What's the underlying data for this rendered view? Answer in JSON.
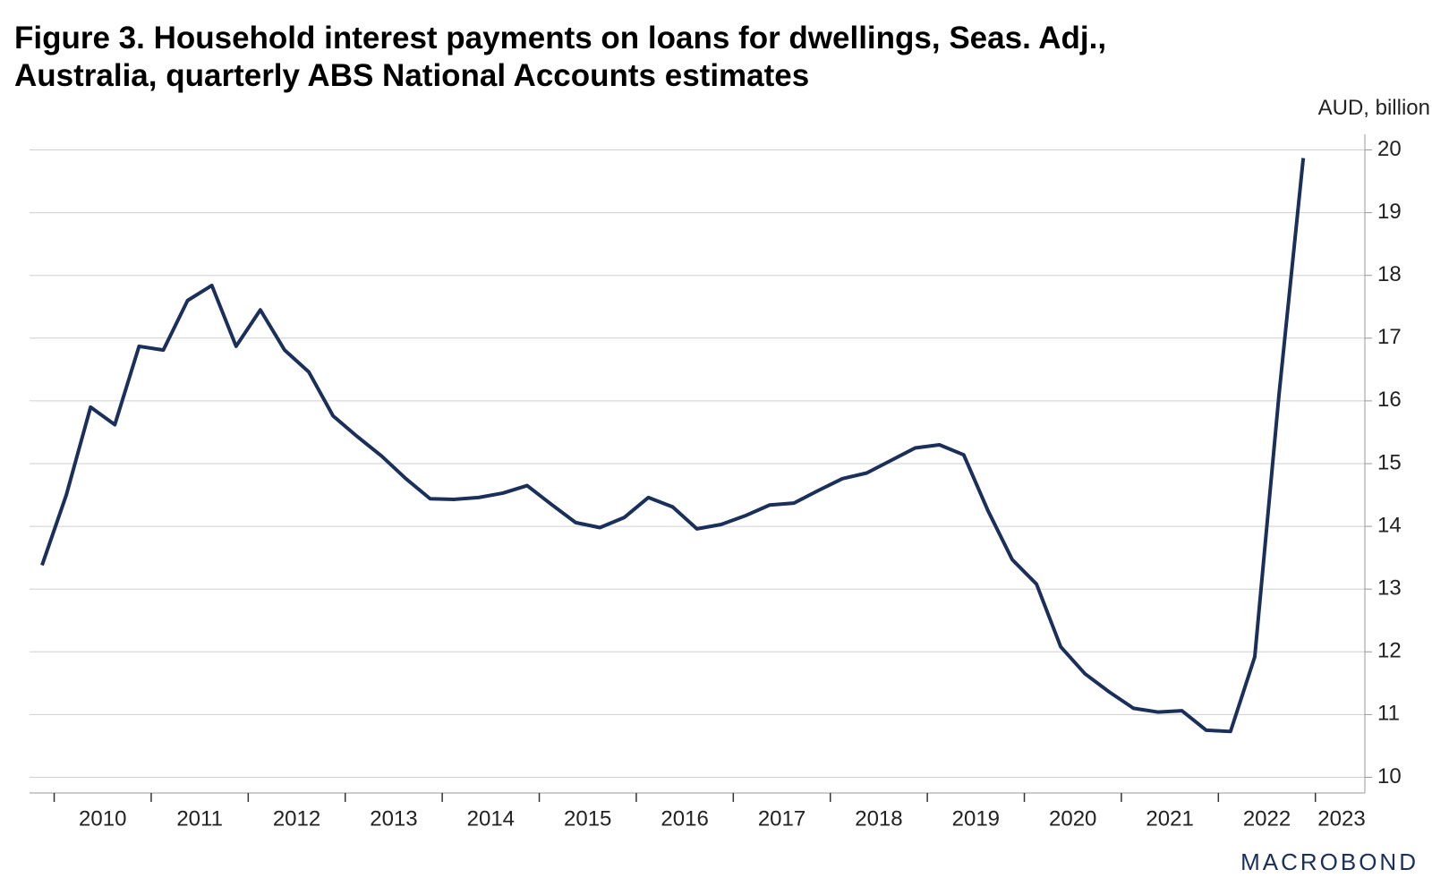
{
  "chart_data": {
    "type": "line",
    "title": "Figure 3. Household interest payments on loans for dwellings, Seas. Adj.,",
    "subtitle": "Australia, quarterly ABS National Accounts estimates",
    "y_axis_label": "AUD, billion",
    "source": "MACROBOND",
    "x": [
      2009.875,
      2010.125,
      2010.375,
      2010.625,
      2010.875,
      2011.125,
      2011.375,
      2011.625,
      2011.875,
      2012.125,
      2012.375,
      2012.625,
      2012.875,
      2013.125,
      2013.375,
      2013.625,
      2013.875,
      2014.125,
      2014.375,
      2014.625,
      2014.875,
      2015.125,
      2015.375,
      2015.625,
      2015.875,
      2016.125,
      2016.375,
      2016.625,
      2016.875,
      2017.125,
      2017.375,
      2017.625,
      2017.875,
      2018.125,
      2018.375,
      2018.625,
      2018.875,
      2019.125,
      2019.375,
      2019.625,
      2019.875,
      2020.125,
      2020.375,
      2020.625,
      2020.875,
      2021.125,
      2021.375,
      2021.625,
      2021.875,
      2022.125,
      2022.375,
      2022.625,
      2022.875
    ],
    "series": [
      {
        "name": "Household interest payments on loans for dwellings",
        "color": "#1b2f5b",
        "values": [
          13.38,
          14.5,
          15.9,
          15.62,
          16.87,
          16.81,
          17.6,
          17.84,
          16.87,
          17.45,
          16.81,
          16.46,
          15.76,
          15.43,
          15.12,
          14.76,
          14.44,
          14.43,
          14.46,
          14.53,
          14.65,
          14.35,
          14.06,
          13.98,
          14.14,
          14.46,
          14.31,
          13.96,
          14.03,
          14.17,
          14.34,
          14.37,
          14.57,
          14.76,
          14.85,
          15.05,
          15.25,
          15.3,
          15.14,
          14.25,
          13.47,
          13.08,
          12.08,
          11.65,
          11.36,
          11.1,
          11.04,
          11.06,
          10.75,
          10.73,
          11.92,
          16.1,
          19.87
        ]
      }
    ],
    "xlim": [
      2009.746,
      2023.51
    ],
    "xticks": [
      2010,
      2011,
      2012,
      2013,
      2014,
      2015,
      2016,
      2017,
      2018,
      2019,
      2020,
      2021,
      2022,
      2023
    ],
    "ylim": [
      9.75,
      20.25
    ],
    "yticks": [
      10,
      11,
      12,
      13,
      14,
      15,
      16,
      17,
      18,
      19,
      20
    ],
    "grid": true
  }
}
